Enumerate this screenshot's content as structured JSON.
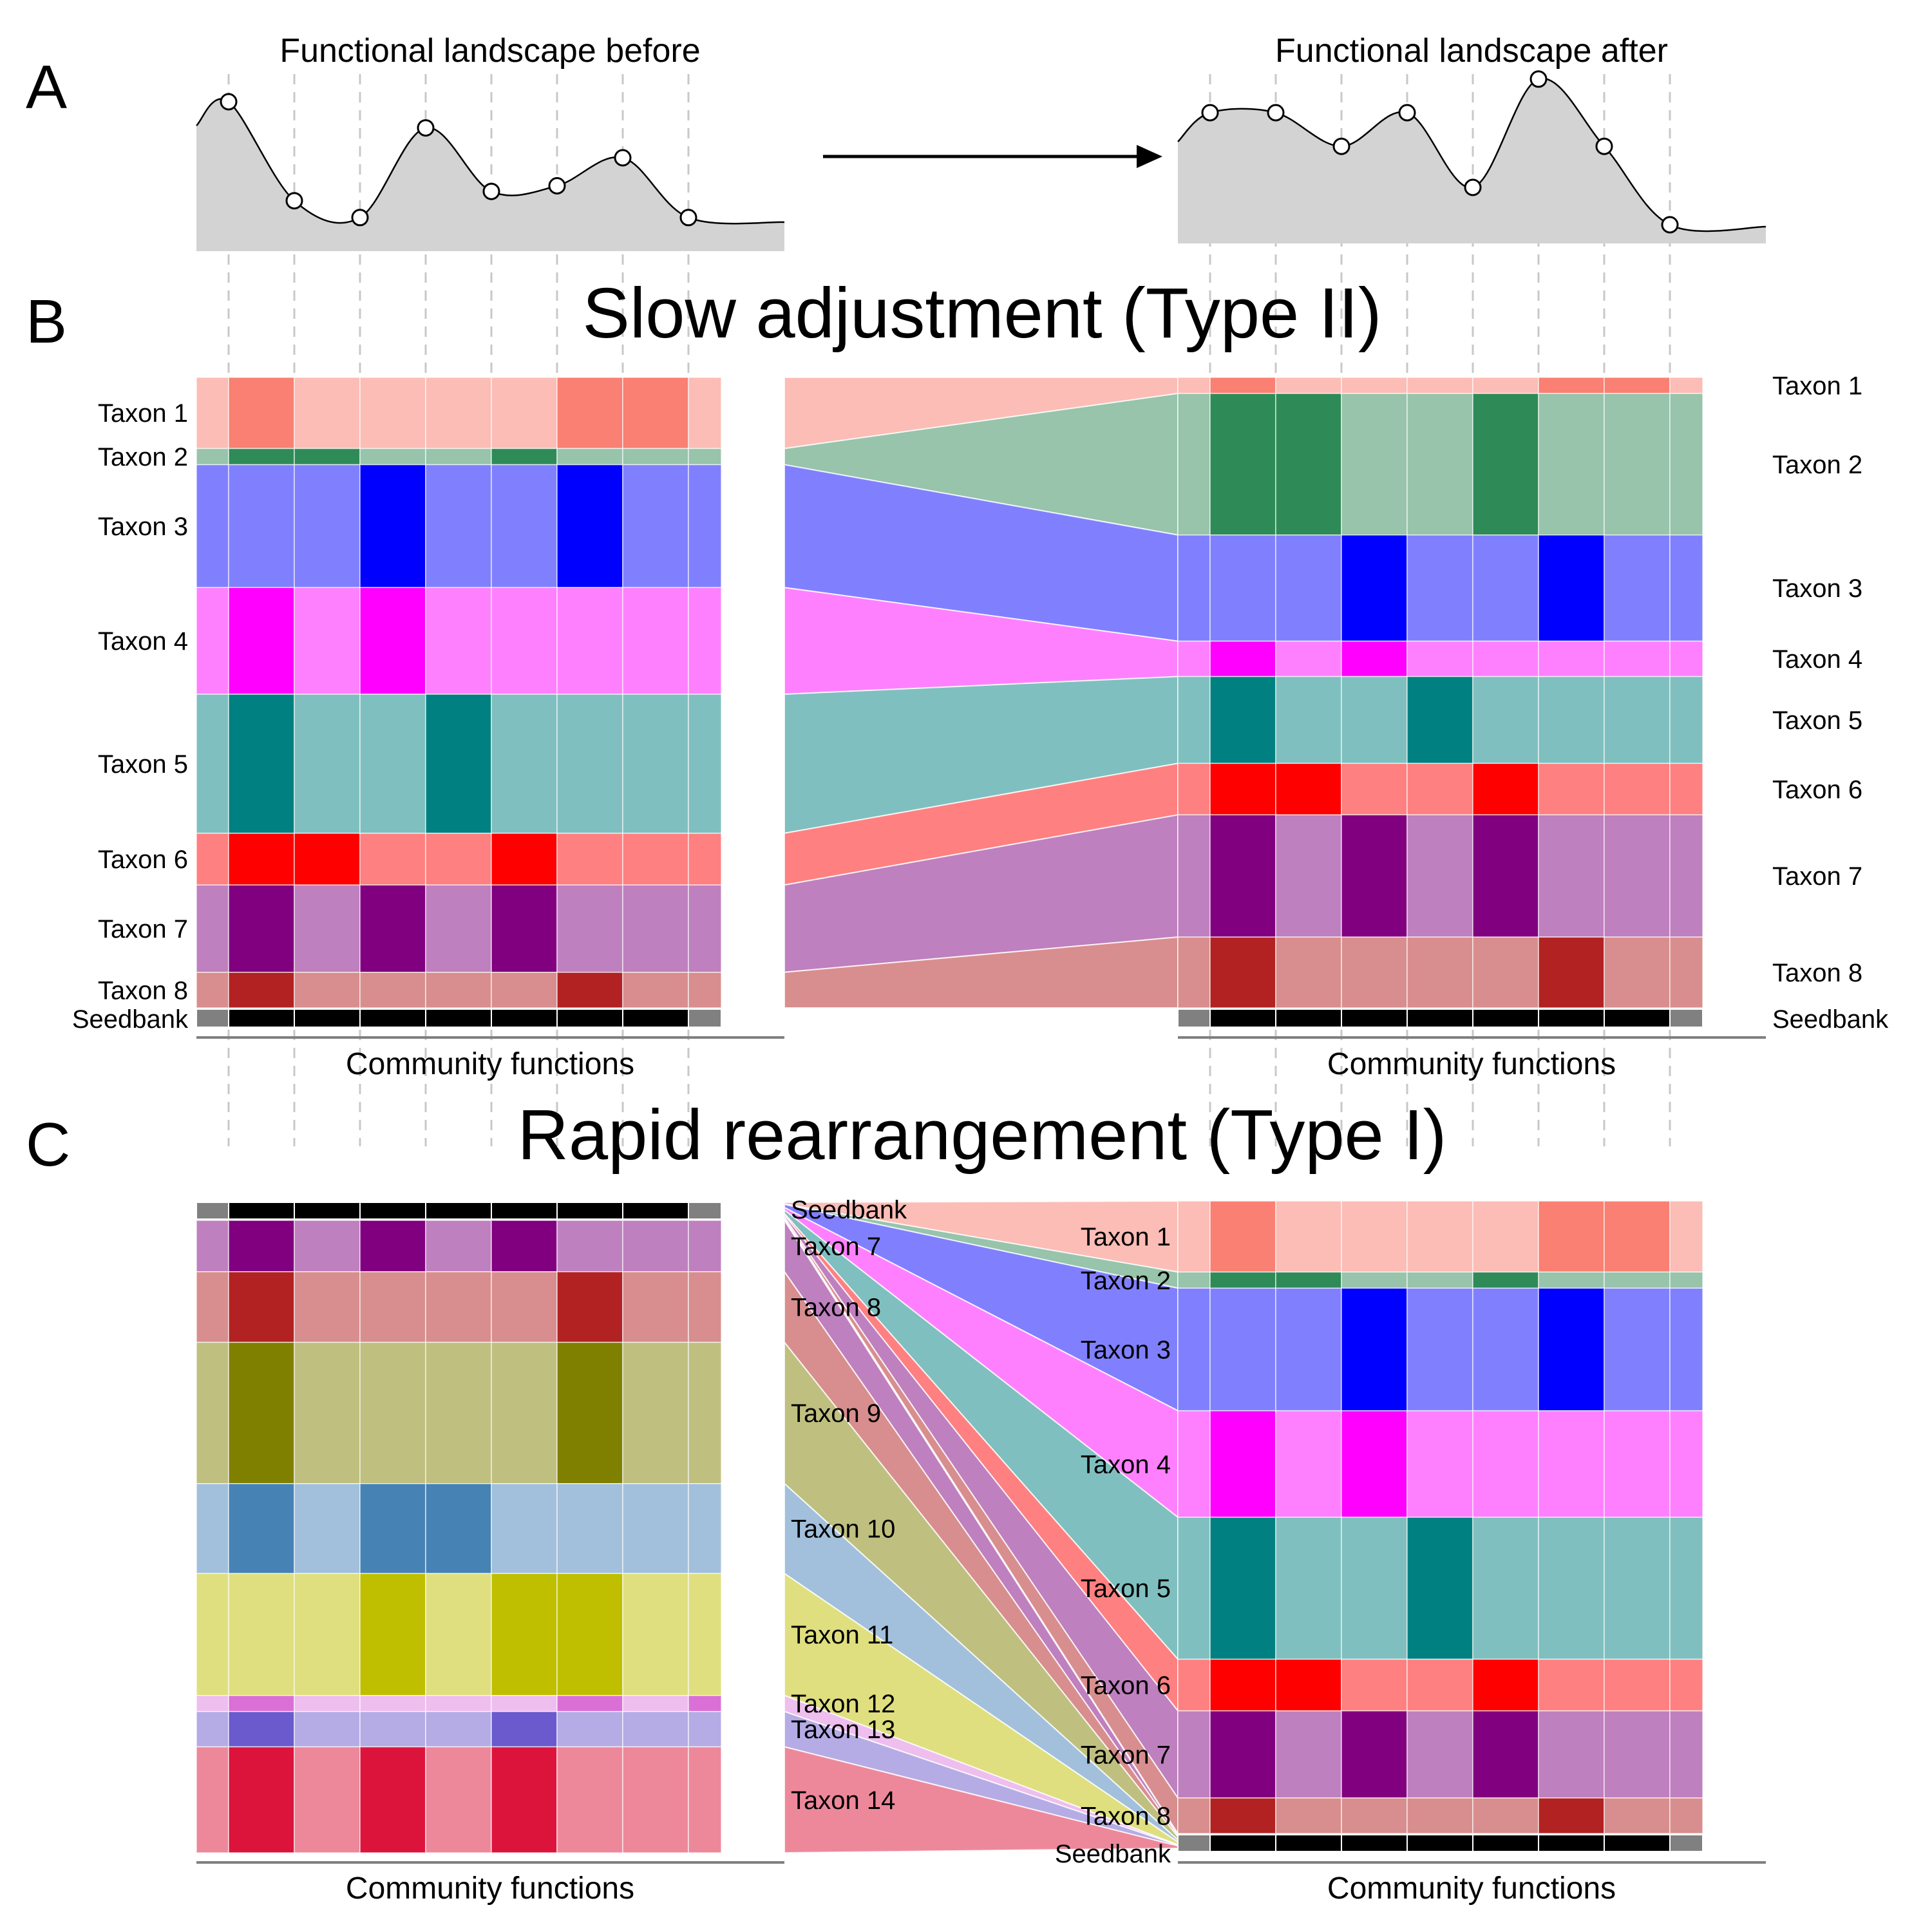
{
  "panel_a": {
    "letter": "A",
    "title_before": "Functional landscape before",
    "title_after": "Functional landscape after",
    "before_point_values": [
      0.8,
      0.27,
      0.18,
      0.66,
      0.32,
      0.35,
      0.5,
      0.18
    ],
    "after_point_values": [
      0.7,
      0.7,
      0.52,
      0.7,
      0.3,
      0.88,
      0.52,
      0.1
    ],
    "fill_color": "#d3d3d3"
  },
  "panel_b": {
    "letter": "B",
    "title": "Slow adjustment (Type II)",
    "xlabel": "Community functions",
    "seedbank_label": "Seedbank",
    "left_taxa": [
      {
        "label": "Taxon 1",
        "light": "#fbbdb6",
        "dark": "#f98072",
        "share": 11.0,
        "cells": [
          0,
          1,
          0,
          0,
          0,
          0,
          1,
          1,
          0
        ]
      },
      {
        "label": "Taxon 2",
        "light": "#97c4ab",
        "dark": "#2e8b57",
        "share": 2.5,
        "cells": [
          0,
          1,
          1,
          0,
          0,
          1,
          0,
          0,
          0
        ]
      },
      {
        "label": "Taxon 3",
        "light": "#8080ff",
        "dark": "#0000ff",
        "share": 19.0,
        "cells": [
          0,
          0,
          0,
          1,
          0,
          0,
          1,
          0,
          0
        ]
      },
      {
        "label": "Taxon 4",
        "light": "#ff80ff",
        "dark": "#ff00ff",
        "share": 16.5,
        "cells": [
          0,
          1,
          0,
          1,
          0,
          0,
          0,
          0,
          0
        ]
      },
      {
        "label": "Taxon 5",
        "light": "#80bfbf",
        "dark": "#008080",
        "share": 21.5,
        "cells": [
          0,
          1,
          0,
          0,
          1,
          0,
          0,
          0,
          0
        ]
      },
      {
        "label": "Taxon 6",
        "light": "#ff8080",
        "dark": "#ff0000",
        "share": 8.0,
        "cells": [
          0,
          1,
          1,
          0,
          0,
          1,
          0,
          0,
          0
        ]
      },
      {
        "label": "Taxon 7",
        "light": "#bf80bf",
        "dark": "#800080",
        "share": 13.5,
        "cells": [
          0,
          1,
          0,
          1,
          0,
          1,
          0,
          0,
          0
        ]
      },
      {
        "label": "Taxon 8",
        "light": "#d88e8e",
        "dark": "#b22222",
        "share": 5.5,
        "cells": [
          0,
          1,
          0,
          0,
          0,
          0,
          1,
          0,
          0
        ]
      }
    ],
    "right_taxa": [
      {
        "label": "Taxon 1",
        "light": "#fbbdb6",
        "dark": "#f98072",
        "share": 2.5,
        "cells": [
          0,
          1,
          0,
          0,
          0,
          0,
          1,
          1,
          0
        ]
      },
      {
        "label": "Taxon 2",
        "light": "#97c4ab",
        "dark": "#2e8b57",
        "share": 22.0,
        "cells": [
          0,
          1,
          1,
          0,
          0,
          1,
          0,
          0,
          0
        ]
      },
      {
        "label": "Taxon 3",
        "light": "#8080ff",
        "dark": "#0000ff",
        "share": 16.5,
        "cells": [
          0,
          0,
          0,
          1,
          0,
          0,
          1,
          0,
          0
        ]
      },
      {
        "label": "Taxon 4",
        "light": "#ff80ff",
        "dark": "#ff00ff",
        "share": 5.5,
        "cells": [
          0,
          1,
          0,
          1,
          0,
          0,
          0,
          0,
          0
        ]
      },
      {
        "label": "Taxon 5",
        "light": "#80bfbf",
        "dark": "#008080",
        "share": 13.5,
        "cells": [
          0,
          1,
          0,
          0,
          1,
          0,
          0,
          0,
          0
        ]
      },
      {
        "label": "Taxon 6",
        "light": "#ff8080",
        "dark": "#ff0000",
        "share": 8.0,
        "cells": [
          0,
          1,
          1,
          0,
          0,
          1,
          0,
          0,
          0
        ]
      },
      {
        "label": "Taxon 7",
        "light": "#bf80bf",
        "dark": "#800080",
        "share": 19.0,
        "cells": [
          0,
          1,
          0,
          1,
          0,
          1,
          0,
          0,
          0
        ]
      },
      {
        "label": "Taxon 8",
        "light": "#d88e8e",
        "dark": "#b22222",
        "share": 11.0,
        "cells": [
          0,
          1,
          0,
          0,
          0,
          0,
          1,
          0,
          0
        ]
      }
    ]
  },
  "panel_c": {
    "letter": "C",
    "title": "Rapid rearrangement (Type I)",
    "xlabel": "Community functions",
    "seedbank_label": "Seedbank",
    "left_taxa": [
      {
        "label": "Taxon 7",
        "light": "#bf80bf",
        "dark": "#800080",
        "share": 8.0,
        "cells": [
          0,
          1,
          0,
          1,
          0,
          1,
          0,
          0,
          0
        ]
      },
      {
        "label": "Taxon 8",
        "light": "#d88e8e",
        "dark": "#b22222",
        "share": 11.0,
        "cells": [
          0,
          1,
          0,
          0,
          0,
          0,
          1,
          0,
          0
        ]
      },
      {
        "label": "Taxon 9",
        "light": "#bfbf80",
        "dark": "#808000",
        "share": 22.0,
        "cells": [
          0,
          1,
          0,
          0,
          0,
          0,
          1,
          0,
          0
        ]
      },
      {
        "label": "Taxon 10",
        "light": "#a2c0db",
        "dark": "#4682b4",
        "share": 14.0,
        "cells": [
          0,
          1,
          0,
          1,
          1,
          0,
          0,
          0,
          0
        ]
      },
      {
        "label": "Taxon 11",
        "light": "#dfdf80",
        "dark": "#bfbf00",
        "share": 19.0,
        "cells": [
          0,
          0,
          0,
          1,
          0,
          1,
          1,
          0,
          0
        ]
      },
      {
        "label": "Taxon 12",
        "light": "#eebeee",
        "dark": "#da70d6",
        "share": 2.5,
        "cells": [
          0,
          1,
          0,
          0,
          0,
          0,
          1,
          0,
          1
        ]
      },
      {
        "label": "Taxon 13",
        "light": "#b5ace6",
        "dark": "#6a5acd",
        "share": 5.5,
        "cells": [
          0,
          1,
          0,
          0,
          0,
          1,
          0,
          0,
          0
        ]
      },
      {
        "label": "Taxon 14",
        "light": "#ed889b",
        "dark": "#dc143c",
        "share": 16.5,
        "cells": [
          0,
          1,
          0,
          1,
          0,
          1,
          0,
          0,
          0
        ]
      }
    ],
    "right_taxa": [
      {
        "label": "Taxon 1",
        "light": "#fbbdb6",
        "dark": "#f98072",
        "share": 11.0,
        "cells": [
          0,
          1,
          0,
          0,
          0,
          0,
          1,
          1,
          0
        ]
      },
      {
        "label": "Taxon 2",
        "light": "#97c4ab",
        "dark": "#2e8b57",
        "share": 2.5,
        "cells": [
          0,
          1,
          1,
          0,
          0,
          1,
          0,
          0,
          0
        ]
      },
      {
        "label": "Taxon 3",
        "light": "#8080ff",
        "dark": "#0000ff",
        "share": 19.0,
        "cells": [
          0,
          0,
          0,
          1,
          0,
          0,
          1,
          0,
          0
        ]
      },
      {
        "label": "Taxon 4",
        "light": "#ff80ff",
        "dark": "#ff00ff",
        "share": 16.5,
        "cells": [
          0,
          1,
          0,
          1,
          0,
          0,
          0,
          0,
          0
        ]
      },
      {
        "label": "Taxon 5",
        "light": "#80bfbf",
        "dark": "#008080",
        "share": 22.0,
        "cells": [
          0,
          1,
          0,
          0,
          1,
          0,
          0,
          0,
          0
        ]
      },
      {
        "label": "Taxon 6",
        "light": "#ff8080",
        "dark": "#ff0000",
        "share": 8.0,
        "cells": [
          0,
          1,
          1,
          0,
          0,
          1,
          0,
          0,
          0
        ]
      },
      {
        "label": "Taxon 7",
        "light": "#bf80bf",
        "dark": "#800080",
        "share": 13.5,
        "cells": [
          0,
          1,
          0,
          1,
          0,
          1,
          0,
          0,
          0
        ]
      },
      {
        "label": "Taxon 8",
        "light": "#d88e8e",
        "dark": "#b22222",
        "share": 5.5,
        "cells": [
          0,
          1,
          0,
          0,
          0,
          0,
          1,
          0,
          0
        ]
      }
    ]
  }
}
